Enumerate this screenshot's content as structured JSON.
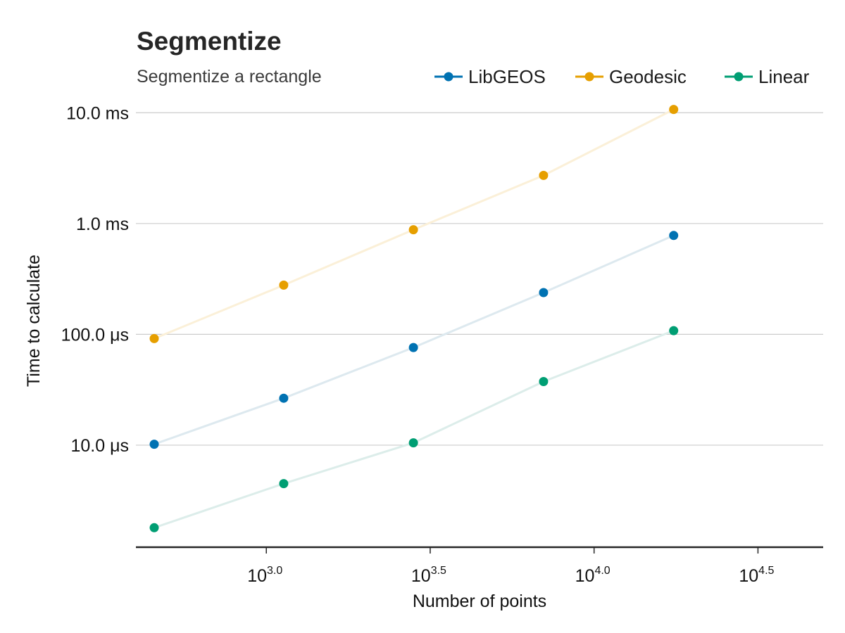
{
  "chart_data": {
    "type": "scatter",
    "title": "Segmentize",
    "subtitle": "Segmentize a rectangle",
    "xlabel": "Number of points",
    "ylabel": "Time to calculate",
    "x_scale": "log10",
    "y_scale": "log10",
    "xlim": [
      400,
      50000
    ],
    "ylim": [
      1.2e-06,
      0.0125
    ],
    "x_ticks": [
      {
        "value": 1000,
        "base": "10",
        "exp": "3.0"
      },
      {
        "value": 3162,
        "base": "10",
        "exp": "3.5"
      },
      {
        "value": 10000,
        "base": "10",
        "exp": "4.0"
      },
      {
        "value": 31623,
        "base": "10",
        "exp": "4.5"
      }
    ],
    "y_ticks": [
      {
        "value": 1e-05,
        "label": "10.0 μs"
      },
      {
        "value": 0.0001,
        "label": "100.0 μs"
      },
      {
        "value": 0.001,
        "label": "1.0 ms"
      },
      {
        "value": 0.01,
        "label": "10.0 ms"
      }
    ],
    "x": [
      455,
      1130,
      2810,
      7010,
      17490
    ],
    "grid": true,
    "legend_position": "top-right",
    "series": [
      {
        "name": "LibGEOS",
        "color": "#0072B2",
        "line_color": "#dde9ef",
        "values": [
          1.02e-05,
          2.65e-05,
          7.6e-05,
          0.000238,
          0.00078
        ]
      },
      {
        "name": "Geodesic",
        "color": "#E69F00",
        "line_color": "#fbf0d8",
        "values": [
          9.15e-05,
          0.000278,
          0.00088,
          0.00272,
          0.0107
        ]
      },
      {
        "name": "Linear",
        "color": "#009E73",
        "line_color": "#dcedea",
        "values": [
          1.8e-06,
          4.5e-06,
          1.05e-05,
          3.75e-05,
          0.000108
        ]
      }
    ]
  }
}
